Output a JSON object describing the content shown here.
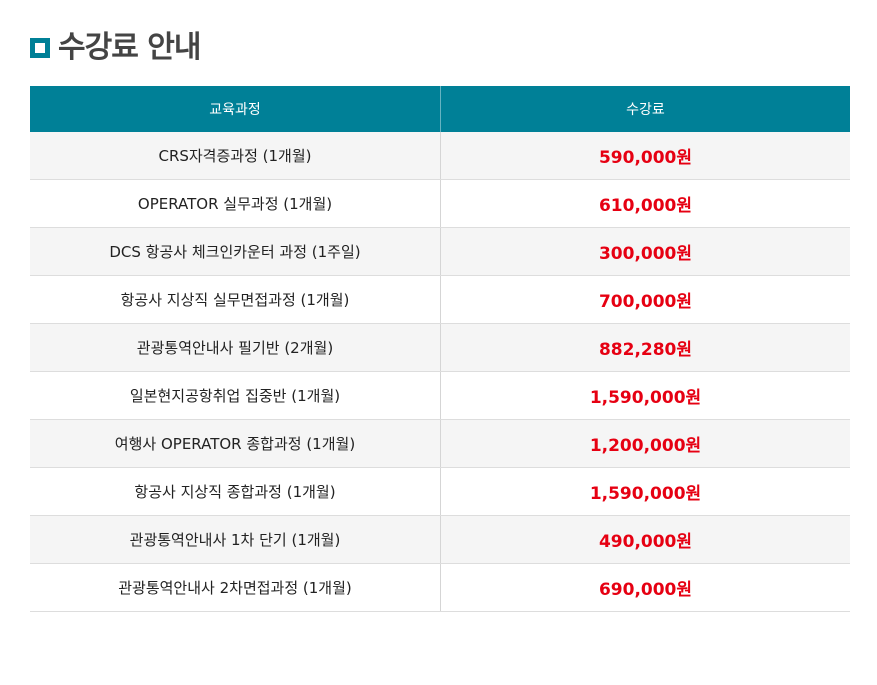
{
  "section": {
    "title": "수강료 안내"
  },
  "table": {
    "headers": {
      "course": "교육과정",
      "fee": "수강료"
    },
    "rows": [
      {
        "course": "CRS자격증과정 (1개월)",
        "fee": "590,000원"
      },
      {
        "course": "OPERATOR 실무과정 (1개월)",
        "fee": "610,000원"
      },
      {
        "course": "DCS 항공사 체크인카운터 과정 (1주일)",
        "fee": "300,000원"
      },
      {
        "course": "항공사 지상직 실무면접과정 (1개월)",
        "fee": "700,000원"
      },
      {
        "course": "관광통역안내사 필기반 (2개월)",
        "fee": "882,280원"
      },
      {
        "course": "일본현지공항취업 집중반 (1개월)",
        "fee": "1,590,000원"
      },
      {
        "course": "여행사 OPERATOR 종합과정 (1개월)",
        "fee": "1,200,000원"
      },
      {
        "course": "항공사 지상직 종합과정 (1개월)",
        "fee": "1,590,000원"
      },
      {
        "course": "관광통역안내사 1차 단기 (1개월)",
        "fee": "490,000원"
      },
      {
        "course": "관광통역안내사 2차면접과정 (1개월)",
        "fee": "690,000원"
      }
    ]
  },
  "colors": {
    "header_bg": "#008097",
    "fee_text": "#e60012",
    "alt_row_bg": "#f5f5f5"
  },
  "icons": {
    "title": "square-bullet-icon"
  }
}
